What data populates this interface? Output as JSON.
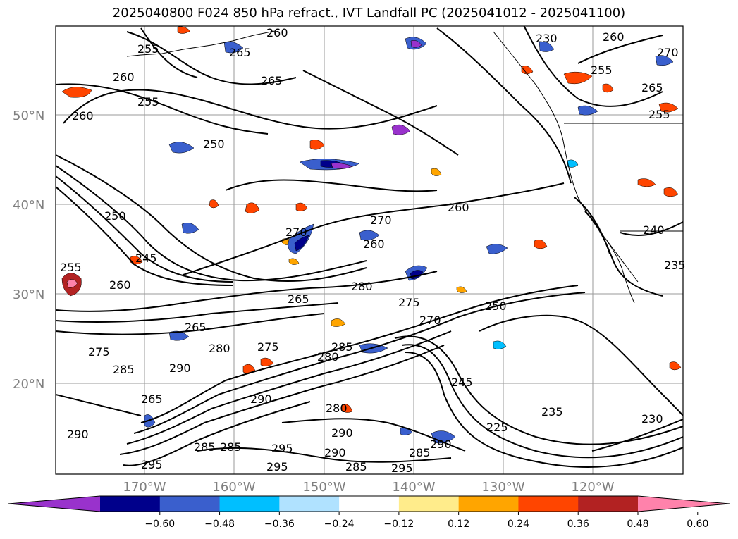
{
  "title": "2025040800 F024 850 hPa refract., IVT Landfall PC (2025041012 - 2025041100)",
  "map": {
    "lat_ticks": [
      "50°N",
      "40°N",
      "30°N",
      "20°N"
    ],
    "lon_ticks": [
      "170°W",
      "160°W",
      "150°W",
      "140°W",
      "130°W",
      "120°W"
    ],
    "contour_labels": [
      "260",
      "255",
      "265",
      "260",
      "250",
      "255",
      "260",
      "265",
      "270",
      "270",
      "260",
      "255",
      "260",
      "265",
      "255",
      "250",
      "240",
      "235",
      "230",
      "225",
      "235",
      "230",
      "250",
      "270",
      "265",
      "280",
      "275",
      "265",
      "260",
      "255",
      "260",
      "245",
      "245",
      "275",
      "285",
      "280",
      "285",
      "275",
      "295",
      "290",
      "285",
      "290",
      "280",
      "270",
      "265",
      "295",
      "290",
      "285",
      "290",
      "280",
      "285",
      "290",
      "295",
      "290",
      "295",
      "285"
    ],
    "colors": {
      "coast": "#000000",
      "grid": "#9a9a9a",
      "contour": "#000000"
    }
  },
  "colorbar": {
    "ticks": [
      "−0.60",
      "−0.48",
      "−0.36",
      "−0.24",
      "−0.12",
      "0.12",
      "0.24",
      "0.36",
      "0.48",
      "0.60"
    ],
    "colors": [
      "#9932cc",
      "#00008b",
      "#3a5fcd",
      "#00bfff",
      "#b0e2ff",
      "#ffffff",
      "#ffec8b",
      "#ffa500",
      "#ff4500",
      "#b22222",
      "#ff82ab"
    ]
  }
}
